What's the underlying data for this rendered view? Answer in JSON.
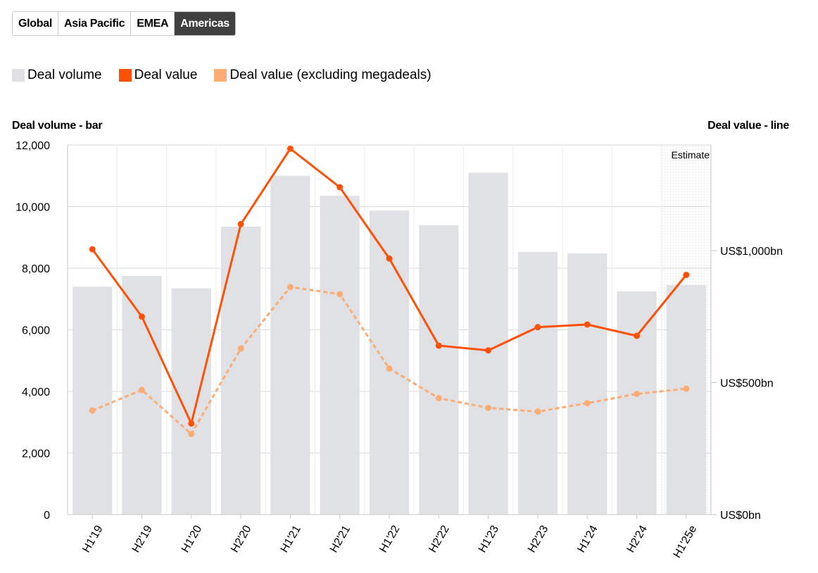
{
  "tabs": [
    {
      "label": "Global",
      "active": false
    },
    {
      "label": "Asia Pacific",
      "active": false
    },
    {
      "label": "EMEA",
      "active": false
    },
    {
      "label": "Americas",
      "active": true
    }
  ],
  "legend": [
    {
      "label": "Deal volume",
      "color": "#e0e1e4"
    },
    {
      "label": "Deal value",
      "color": "#fd5108"
    },
    {
      "label": "Deal value (excluding megadeals)",
      "color": "#fdac74"
    }
  ],
  "chart_data": {
    "type": "bar",
    "left_axis_title": "Deal volume - bar",
    "right_axis_title": "Deal value - line",
    "estimate_label": "Estimate",
    "categories": [
      "H1'19",
      "H2'19",
      "H1'20",
      "H2'20",
      "H1'21",
      "H2'21",
      "H1'22",
      "H2'22",
      "H1'23",
      "H2'23",
      "H1'24",
      "H2'24",
      "H1'25e"
    ],
    "left_ylim": [
      0,
      12000
    ],
    "left_ticks": [
      {
        "value": 0,
        "label": "0"
      },
      {
        "value": 2000,
        "label": "2,000"
      },
      {
        "value": 4000,
        "label": "4,000"
      },
      {
        "value": 6000,
        "label": "6,000"
      },
      {
        "value": 8000,
        "label": "8,000"
      },
      {
        "value": 10000,
        "label": "10,000"
      },
      {
        "value": 12000,
        "label": "12,000"
      }
    ],
    "right_ylim": [
      0,
      1400
    ],
    "right_ticks": [
      {
        "value": 0,
        "label": "US$0bn"
      },
      {
        "value": 500,
        "label": "US$500bn"
      },
      {
        "value": 1000,
        "label": "US$1,000bn"
      }
    ],
    "series": [
      {
        "name": "Deal volume",
        "kind": "bar",
        "axis": "left",
        "color": "#e0e1e4",
        "values": [
          7400,
          7750,
          7350,
          9350,
          11000,
          10350,
          9870,
          9400,
          11100,
          8530,
          8480,
          7250,
          7450
        ]
      },
      {
        "name": "Deal value",
        "kind": "line",
        "axis": "right",
        "color": "#fd5108",
        "values": [
          1005,
          750,
          345,
          1100,
          1386,
          1240,
          970,
          640,
          622,
          710,
          720,
          677,
          908
        ]
      },
      {
        "name": "Deal value (excluding megadeals)",
        "kind": "dashed-line",
        "axis": "right",
        "color": "#fdac74",
        "values": [
          394,
          472,
          305,
          629,
          862,
          835,
          553,
          441,
          404,
          390,
          422,
          457,
          477
        ]
      }
    ],
    "estimate_index": 12,
    "grid": true
  }
}
